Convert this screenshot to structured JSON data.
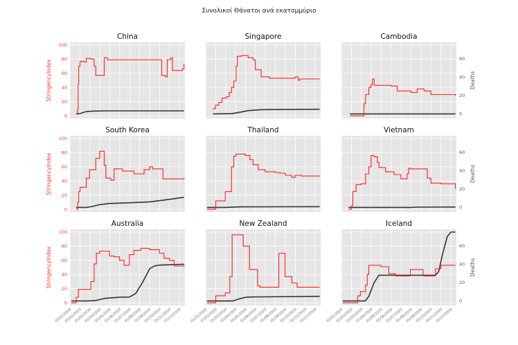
{
  "chart_data": {
    "type": "line",
    "title": "Συνολικοί Θάνατοι ανά εκατομμύριο",
    "left_ylabel": "StringencyIndex",
    "right_ylabel": "Deaths",
    "left_ylim": [
      0,
      100
    ],
    "left_yticks": [
      0,
      20,
      40,
      60,
      80,
      100
    ],
    "right_ylim": [
      -5,
      78
    ],
    "right_yticks": [
      0,
      20,
      40,
      60
    ],
    "x_ticks": [
      "01/01/2020",
      "01/02/2020",
      "01/03/2020",
      "01/04/2020",
      "01/05/2020",
      "01/06/2020",
      "01/07/2020",
      "01/08/2020",
      "01/09/2020",
      "01/10/2020",
      "01/11/2020",
      "01/12/2020"
    ],
    "x_range": [
      "2020-01-01",
      "2020-12-18"
    ],
    "grid": true,
    "colors": {
      "stringency": "#ff2020",
      "deaths": "#333333",
      "panel_bg": "#e5e5e5",
      "grid": "#ffffff"
    },
    "panels": [
      {
        "title": "China",
        "stringency": [
          [
            "2020-01-20",
            2
          ],
          [
            "2020-01-24",
            8
          ],
          [
            "2020-01-26",
            45
          ],
          [
            "2020-01-28",
            70
          ],
          [
            "2020-02-01",
            77
          ],
          [
            "2020-02-10",
            76
          ],
          [
            "2020-02-20",
            81
          ],
          [
            "2020-03-05",
            80
          ],
          [
            "2020-03-15",
            70
          ],
          [
            "2020-03-20",
            57
          ],
          [
            "2020-04-15",
            82
          ],
          [
            "2020-04-25",
            79
          ],
          [
            "2020-10-01",
            79
          ],
          [
            "2020-10-08",
            57
          ],
          [
            "2020-10-20",
            55
          ],
          [
            "2020-10-25",
            79
          ],
          [
            "2020-11-05",
            82
          ],
          [
            "2020-11-10",
            64
          ],
          [
            "2020-12-10",
            66
          ],
          [
            "2020-12-15",
            73
          ]
        ],
        "deaths": [
          [
            "2020-01-20",
            0
          ],
          [
            "2020-02-01",
            0.3
          ],
          [
            "2020-02-10",
            1.5
          ],
          [
            "2020-02-20",
            2.5
          ],
          [
            "2020-03-10",
            3
          ],
          [
            "2020-04-17",
            3.3
          ],
          [
            "2020-12-15",
            3.3
          ]
        ]
      },
      {
        "title": "Singapore",
        "stringency": [
          [
            "2020-01-23",
            10
          ],
          [
            "2020-01-31",
            15
          ],
          [
            "2020-02-10",
            19
          ],
          [
            "2020-02-20",
            25
          ],
          [
            "2020-03-05",
            27
          ],
          [
            "2020-03-13",
            33
          ],
          [
            "2020-03-20",
            40
          ],
          [
            "2020-03-27",
            49
          ],
          [
            "2020-04-03",
            70
          ],
          [
            "2020-04-07",
            84
          ],
          [
            "2020-04-20",
            85
          ],
          [
            "2020-05-10",
            82
          ],
          [
            "2020-05-25",
            79
          ],
          [
            "2020-06-01",
            65
          ],
          [
            "2020-06-19",
            55
          ],
          [
            "2020-07-15",
            53
          ],
          [
            "2020-09-15",
            53
          ],
          [
            "2020-10-01",
            55
          ],
          [
            "2020-10-10",
            50
          ],
          [
            "2020-10-15",
            52
          ],
          [
            "2020-12-15",
            52
          ]
        ],
        "deaths": [
          [
            "2020-01-23",
            0
          ],
          [
            "2020-03-20",
            0.2
          ],
          [
            "2020-04-10",
            1.5
          ],
          [
            "2020-05-10",
            3.5
          ],
          [
            "2020-06-15",
            4.5
          ],
          [
            "2020-08-01",
            4.7
          ],
          [
            "2020-12-15",
            5
          ]
        ]
      },
      {
        "title": "Cambodia",
        "stringency": [
          [
            "2020-01-27",
            0
          ],
          [
            "2020-03-05",
            0
          ],
          [
            "2020-03-10",
            17
          ],
          [
            "2020-03-15",
            30
          ],
          [
            "2020-03-25",
            40
          ],
          [
            "2020-04-01",
            44
          ],
          [
            "2020-04-05",
            52
          ],
          [
            "2020-04-10",
            43
          ],
          [
            "2020-06-01",
            42
          ],
          [
            "2020-06-20",
            35
          ],
          [
            "2020-08-01",
            33
          ],
          [
            "2020-08-20",
            38
          ],
          [
            "2020-09-10",
            35
          ],
          [
            "2020-10-01",
            30
          ],
          [
            "2020-12-15",
            28
          ]
        ],
        "deaths": [
          [
            "2020-01-27",
            0
          ],
          [
            "2020-12-15",
            0
          ]
        ]
      },
      {
        "title": "South Korea",
        "stringency": [
          [
            "2020-01-20",
            0
          ],
          [
            "2020-01-25",
            10
          ],
          [
            "2020-01-28",
            25
          ],
          [
            "2020-02-01",
            31
          ],
          [
            "2020-02-20",
            44
          ],
          [
            "2020-03-01",
            56
          ],
          [
            "2020-03-20",
            72
          ],
          [
            "2020-04-01",
            82
          ],
          [
            "2020-04-15",
            62
          ],
          [
            "2020-04-20",
            44
          ],
          [
            "2020-05-05",
            41
          ],
          [
            "2020-05-15",
            57
          ],
          [
            "2020-06-10",
            54
          ],
          [
            "2020-07-15",
            50
          ],
          [
            "2020-08-15",
            56
          ],
          [
            "2020-09-01",
            60
          ],
          [
            "2020-09-10",
            57
          ],
          [
            "2020-10-12",
            43
          ],
          [
            "2020-12-15",
            44
          ]
        ],
        "deaths": [
          [
            "2020-01-20",
            0
          ],
          [
            "2020-02-20",
            0
          ],
          [
            "2020-03-10",
            1
          ],
          [
            "2020-04-01",
            3
          ],
          [
            "2020-05-01",
            4.3
          ],
          [
            "2020-07-01",
            5
          ],
          [
            "2020-09-01",
            6
          ],
          [
            "2020-10-15",
            8
          ],
          [
            "2020-11-15",
            9.5
          ],
          [
            "2020-12-15",
            11
          ]
        ]
      },
      {
        "title": "Thailand",
        "stringency": [
          [
            "2020-01-05",
            0
          ],
          [
            "2020-01-25",
            0
          ],
          [
            "2020-02-01",
            12
          ],
          [
            "2020-03-01",
            25
          ],
          [
            "2020-03-20",
            60
          ],
          [
            "2020-03-27",
            75
          ],
          [
            "2020-04-03",
            78
          ],
          [
            "2020-05-01",
            76
          ],
          [
            "2020-05-15",
            70
          ],
          [
            "2020-05-25",
            63
          ],
          [
            "2020-06-10",
            56
          ],
          [
            "2020-07-01",
            53
          ],
          [
            "2020-08-01",
            52
          ],
          [
            "2020-08-15",
            51
          ],
          [
            "2020-09-01",
            48
          ],
          [
            "2020-09-20",
            45
          ],
          [
            "2020-10-01",
            48
          ],
          [
            "2020-10-20",
            47
          ],
          [
            "2020-12-15",
            47
          ]
        ],
        "deaths": [
          [
            "2020-01-05",
            0
          ],
          [
            "2020-03-01",
            0
          ],
          [
            "2020-04-15",
            0.6
          ],
          [
            "2020-12-15",
            0.8
          ]
        ]
      },
      {
        "title": "Vietnam",
        "stringency": [
          [
            "2020-01-23",
            0
          ],
          [
            "2020-02-01",
            5
          ],
          [
            "2020-02-05",
            25
          ],
          [
            "2020-02-15",
            35
          ],
          [
            "2020-03-01",
            36
          ],
          [
            "2020-03-15",
            50
          ],
          [
            "2020-03-25",
            60
          ],
          [
            "2020-04-01",
            76
          ],
          [
            "2020-04-10",
            74
          ],
          [
            "2020-04-20",
            66
          ],
          [
            "2020-04-25",
            59
          ],
          [
            "2020-05-15",
            53
          ],
          [
            "2020-06-10",
            49
          ],
          [
            "2020-07-01",
            43
          ],
          [
            "2020-07-20",
            50
          ],
          [
            "2020-07-25",
            58
          ],
          [
            "2020-08-01",
            57
          ],
          [
            "2020-09-20",
            44
          ],
          [
            "2020-10-01",
            37
          ],
          [
            "2020-11-01",
            36
          ],
          [
            "2020-12-15",
            29
          ]
        ],
        "deaths": [
          [
            "2020-01-23",
            0
          ],
          [
            "2020-07-31",
            0
          ],
          [
            "2020-08-20",
            0.3
          ],
          [
            "2020-12-15",
            0.4
          ]
        ]
      },
      {
        "title": "Australia",
        "stringency": [
          [
            "2020-01-05",
            0
          ],
          [
            "2020-01-20",
            8
          ],
          [
            "2020-01-27",
            19
          ],
          [
            "2020-02-20",
            19
          ],
          [
            "2020-03-05",
            30
          ],
          [
            "2020-03-15",
            55
          ],
          [
            "2020-03-22",
            70
          ],
          [
            "2020-04-01",
            73
          ],
          [
            "2020-05-01",
            66
          ],
          [
            "2020-05-15",
            65
          ],
          [
            "2020-06-01",
            60
          ],
          [
            "2020-06-15",
            53
          ],
          [
            "2020-07-01",
            68
          ],
          [
            "2020-07-15",
            74
          ],
          [
            "2020-08-05",
            77
          ],
          [
            "2020-09-01",
            75
          ],
          [
            "2020-10-01",
            70
          ],
          [
            "2020-10-15",
            63
          ],
          [
            "2020-11-01",
            60
          ],
          [
            "2020-11-15",
            52
          ],
          [
            "2020-12-15",
            54
          ]
        ],
        "deaths": [
          [
            "2020-01-05",
            0
          ],
          [
            "2020-02-25",
            0
          ],
          [
            "2020-03-20",
            0.5
          ],
          [
            "2020-04-20",
            3
          ],
          [
            "2020-06-01",
            4
          ],
          [
            "2020-07-01",
            4.2
          ],
          [
            "2020-07-20",
            8
          ],
          [
            "2020-08-10",
            20
          ],
          [
            "2020-09-01",
            35
          ],
          [
            "2020-09-15",
            38
          ],
          [
            "2020-10-01",
            39
          ],
          [
            "2020-12-15",
            40
          ]
        ]
      },
      {
        "title": "New Zealand",
        "stringency": [
          [
            "2020-01-05",
            0
          ],
          [
            "2020-02-01",
            10
          ],
          [
            "2020-03-01",
            14
          ],
          [
            "2020-03-15",
            37
          ],
          [
            "2020-03-22",
            96
          ],
          [
            "2020-04-25",
            80
          ],
          [
            "2020-05-14",
            47
          ],
          [
            "2020-06-08",
            24
          ],
          [
            "2020-06-15",
            22
          ],
          [
            "2020-08-12",
            70
          ],
          [
            "2020-08-31",
            37
          ],
          [
            "2020-09-21",
            28
          ],
          [
            "2020-10-07",
            22
          ],
          [
            "2020-12-15",
            22
          ]
        ],
        "deaths": [
          [
            "2020-01-05",
            0
          ],
          [
            "2020-03-25",
            0
          ],
          [
            "2020-04-10",
            2
          ],
          [
            "2020-05-01",
            3.8
          ],
          [
            "2020-05-15",
            4.3
          ],
          [
            "2020-12-15",
            5
          ]
        ]
      },
      {
        "title": "Iceland",
        "stringency": [
          [
            "2020-01-05",
            0
          ],
          [
            "2020-02-15",
            0
          ],
          [
            "2020-02-20",
            10
          ],
          [
            "2020-02-28",
            16
          ],
          [
            "2020-03-15",
            25
          ],
          [
            "2020-03-20",
            40
          ],
          [
            "2020-03-25",
            53
          ],
          [
            "2020-05-01",
            51
          ],
          [
            "2020-05-25",
            41
          ],
          [
            "2020-06-15",
            38
          ],
          [
            "2020-07-30",
            47
          ],
          [
            "2020-09-07",
            38
          ],
          [
            "2020-10-05",
            38
          ],
          [
            "2020-10-15",
            48
          ],
          [
            "2020-11-01",
            53
          ],
          [
            "2020-12-15",
            53
          ]
        ],
        "deaths": [
          [
            "2020-01-05",
            0
          ],
          [
            "2020-03-14",
            0
          ],
          [
            "2020-03-25",
            5
          ],
          [
            "2020-04-10",
            20
          ],
          [
            "2020-04-25",
            28
          ],
          [
            "2020-10-15",
            28
          ],
          [
            "2020-10-25",
            32
          ],
          [
            "2020-11-05",
            50
          ],
          [
            "2020-11-20",
            70
          ],
          [
            "2020-12-01",
            75
          ],
          [
            "2020-12-15",
            75
          ]
        ]
      }
    ]
  }
}
